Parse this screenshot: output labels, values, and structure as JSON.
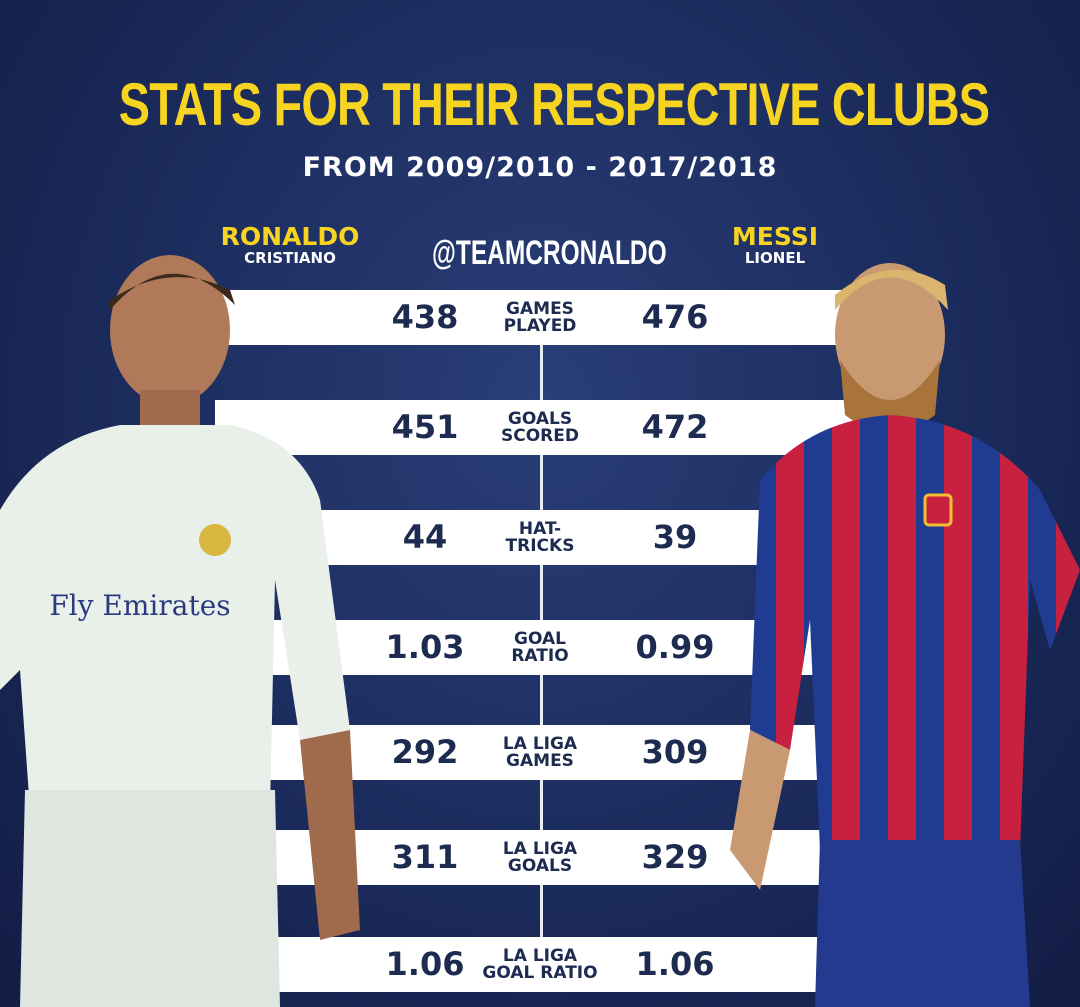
{
  "header": {
    "title": "STATS FOR THEIR RESPECTIVE CLUBS",
    "subtitle": "FROM 2009/2010 - 2017/2018",
    "handle": "@TEAMCRONALDO"
  },
  "players": {
    "left": {
      "last": "RONALDO",
      "first": "CRISTIANO",
      "kit_color": "#e9efe9",
      "sponsor": "Fly Emirates"
    },
    "right": {
      "last": "MESSI",
      "first": "LIONEL",
      "kit_colors": [
        "#c8213f",
        "#1f3c92"
      ]
    }
  },
  "accent": "#f7d420",
  "stats": [
    {
      "label": "GAMES PLAYED",
      "left": "438",
      "right": "476"
    },
    {
      "label": "GOALS SCORED",
      "left": "451",
      "right": "472"
    },
    {
      "label": "HAT-TRICKS",
      "left": "44",
      "right": "39"
    },
    {
      "label": "GOAL RATIO",
      "left": "1.03",
      "right": "0.99"
    },
    {
      "label": "LA LIGA GAMES",
      "left": "292",
      "right": "309"
    },
    {
      "label": "LA LIGA GOALS",
      "left": "311",
      "right": "329"
    },
    {
      "label": "LA LIGA GOAL RATIO",
      "left": "1.06",
      "right": "1.06"
    }
  ]
}
